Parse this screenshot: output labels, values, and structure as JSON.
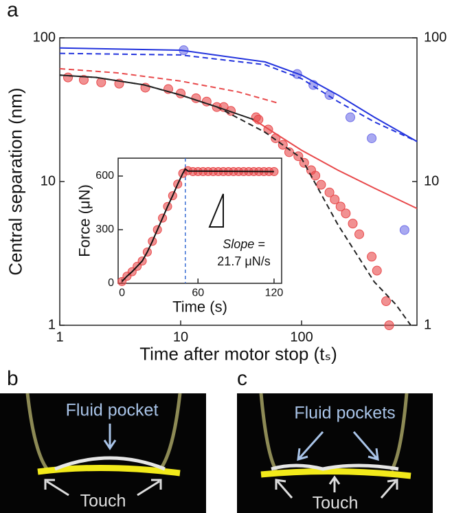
{
  "chart_data": [
    {
      "type": "scatter",
      "xlabel": "Time after motor stop (tₛ)",
      "ylabel": "Central separation (nm)",
      "xlog": true,
      "ylog": true,
      "xlim": [
        1,
        900
      ],
      "ylim": [
        1,
        100
      ],
      "xticks": [
        1,
        10,
        100
      ],
      "yticks": [
        1,
        10,
        100
      ],
      "right_ticks": true,
      "series": [
        {
          "mode": "markers",
          "color": "#e8484a",
          "x": [
            1.17,
            1.58,
            2.2,
            3.1,
            5.1,
            7.9,
            10,
            13.4,
            16.4,
            19.9,
            22.7,
            26,
            42,
            44,
            53,
            61,
            70,
            79,
            94,
            105,
            120,
            130,
            145,
            170,
            188,
            210,
            232,
            265,
            300,
            380,
            420,
            500,
            530
          ],
          "values": [
            53,
            51,
            49,
            48,
            45,
            44,
            41,
            38,
            36,
            33,
            33,
            31,
            28,
            27,
            23,
            20,
            18,
            16,
            15,
            13.5,
            12,
            11,
            9.5,
            8.4,
            7.5,
            6.7,
            6.0,
            5.1,
            4.3,
            3.0,
            2.4,
            1.47,
            1.0
          ]
        },
        {
          "mode": "markers",
          "color": "#6f6fe8",
          "x": [
            10.6,
            92,
            125,
            170,
            253,
            380,
            710
          ],
          "values": [
            82,
            56,
            47,
            40,
            28,
            20,
            4.6
          ]
        },
        {
          "mode": "line",
          "dash": true,
          "color": "#e8484a",
          "x": [
            1,
            3,
            10,
            30,
            65
          ],
          "values": [
            61,
            57,
            50,
            42,
            35
          ]
        },
        {
          "mode": "line",
          "color": "#e8484a",
          "x": [
            40,
            100,
            200,
            400,
            900
          ],
          "values": [
            27,
            16.5,
            12,
            9,
            6.5
          ]
        },
        {
          "mode": "line",
          "dash": true,
          "color": "#222222",
          "x": [
            1,
            2,
            5,
            10,
            20,
            50,
            100,
            200,
            400,
            600,
            800
          ],
          "values": [
            55,
            53,
            47,
            40,
            33,
            22,
            14.5,
            5,
            2,
            1.4,
            1
          ]
        },
        {
          "mode": "line",
          "color": "#222222",
          "x": [
            1,
            2,
            5,
            10,
            20,
            40
          ],
          "values": [
            55,
            53,
            47,
            40,
            33,
            27
          ]
        },
        {
          "mode": "line",
          "dash": true,
          "color": "#2233dd",
          "x": [
            1,
            10,
            50,
            100,
            200,
            400,
            900
          ],
          "values": [
            78,
            76,
            65,
            52,
            36,
            26,
            19
          ]
        },
        {
          "mode": "line",
          "color": "#2233dd",
          "x": [
            1,
            10,
            50,
            100,
            200,
            400,
            900
          ],
          "values": [
            85,
            82,
            68,
            55,
            40,
            28,
            19
          ]
        }
      ]
    },
    {
      "type": "scatter",
      "xlabel": "Time (s)",
      "ylabel": "Force (μN)",
      "xlim": [
        -3,
        126
      ],
      "ylim": [
        0,
        700
      ],
      "xticks": [
        0,
        60,
        120
      ],
      "yticks": [
        0,
        300,
        600
      ],
      "vline": {
        "x": 50,
        "color": "#3b6fd4"
      },
      "annotations": [
        "Slope =",
        "21.7 μN/s"
      ],
      "series": [
        {
          "mode": "markers",
          "color": "#e8484a",
          "x": [
            0,
            4,
            8,
            12,
            16,
            20,
            24,
            28,
            32,
            36,
            40,
            44,
            48,
            52,
            56,
            60,
            64,
            68,
            72,
            76,
            80,
            84,
            88,
            92,
            96,
            100,
            104,
            108,
            112,
            116,
            120
          ],
          "values": [
            10,
            40,
            65,
            95,
            125,
            175,
            235,
            300,
            365,
            430,
            490,
            555,
            615,
            630,
            625,
            625,
            625,
            625,
            625,
            625,
            625,
            625,
            625,
            625,
            625,
            625,
            625,
            625,
            625,
            625,
            625
          ]
        },
        {
          "mode": "line",
          "color": "#111111",
          "x": [
            0,
            4,
            8,
            12,
            16,
            20,
            24,
            28,
            32,
            36,
            40,
            44,
            48,
            50,
            52,
            120
          ],
          "values": [
            10,
            40,
            65,
            95,
            125,
            175,
            235,
            300,
            365,
            430,
            490,
            555,
            615,
            640,
            628,
            625
          ]
        }
      ]
    }
  ],
  "panels": [
    "a",
    "b",
    "c"
  ],
  "images": [
    {
      "annotation": "Fluid pocket",
      "touch": "Touch"
    },
    {
      "annotation": "Fluid pockets",
      "touch": "Touch"
    }
  ]
}
